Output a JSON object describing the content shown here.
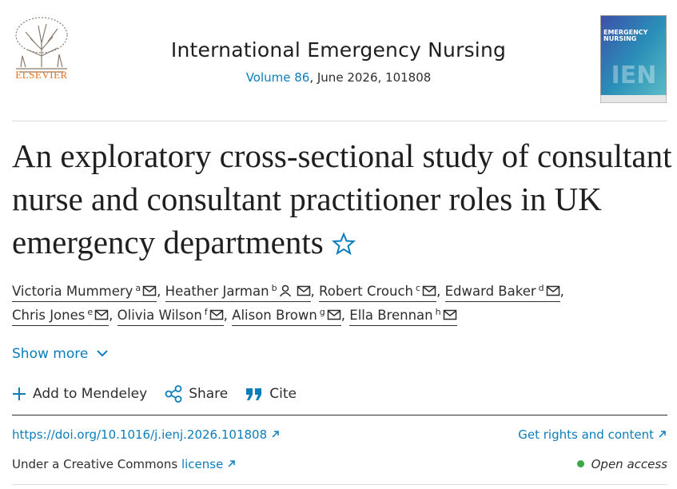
{
  "header": {
    "publisher": "ELSEVIER",
    "journal": "International Emergency Nursing",
    "volume": "Volume 86",
    "issue_info": ", June 2026, 101808",
    "cover_title": "EMERGENCY NURSING",
    "cover_mark": "IEN"
  },
  "article": {
    "title": "An exploratory cross-sectional study of consultant nurse and consultant practitioner roles in UK emergency departments",
    "separator": ",",
    "authors": [
      {
        "name": "Victoria Mummery",
        "sup": "a"
      },
      {
        "name": "Heather Jarman",
        "sup": "b"
      },
      {
        "name": "Robert Crouch",
        "sup": "c"
      },
      {
        "name": "Edward Baker",
        "sup": "d"
      },
      {
        "name": "Chris Jones",
        "sup": "e"
      },
      {
        "name": "Olivia Wilson",
        "sup": "f"
      },
      {
        "name": "Alison Brown",
        "sup": "g"
      },
      {
        "name": "Ella Brennan",
        "sup": "h"
      }
    ]
  },
  "actions": {
    "show_more": "Show more",
    "mendeley": "Add to Mendeley",
    "share": "Share",
    "cite": "Cite"
  },
  "links": {
    "doi": "https://doi.org/10.1016/j.ienj.2026.101808",
    "rights": "Get rights and content",
    "license_prefix": "Under a Creative Commons",
    "license": "license",
    "open_access": "Open access"
  }
}
